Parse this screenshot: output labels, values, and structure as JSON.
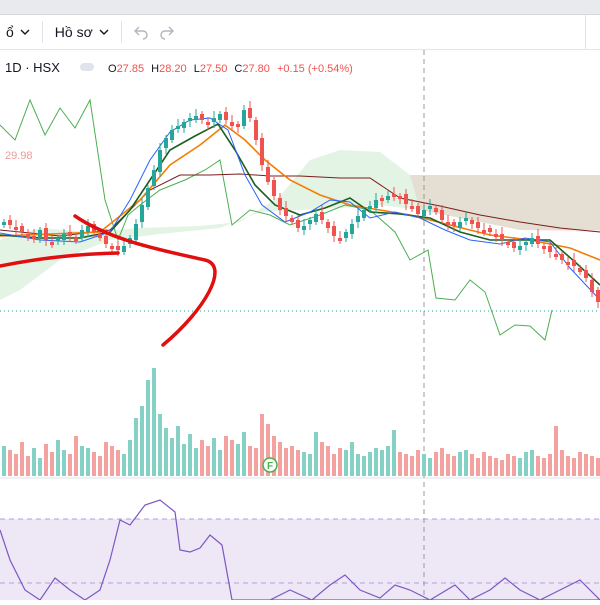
{
  "toolbar": {
    "left_cut_label": "ổ",
    "profile_label": "Hồ sơ",
    "undo_icon": "undo-icon",
    "redo_icon": "redo-icon"
  },
  "legend": {
    "interval_exchange": "1D · HSX",
    "o_label": "O",
    "o_value": "27.85",
    "h_label": "H",
    "h_value": "28.20",
    "l_label": "L",
    "l_value": "27.50",
    "c_label": "C",
    "c_value": "27.80",
    "change": "+0.15 (+0.54%)"
  },
  "price_label": "29.98",
  "volume_marker": "F",
  "colors": {
    "up": "#26a69a",
    "down": "#ef5350",
    "up_volume": "#86d1c6",
    "down_volume": "#f4a2a0",
    "ma_short": "#2962ff",
    "ma_mid": "#1b5e20",
    "ma_long": "#f57c00",
    "ichimoku_span": "#4caf50",
    "ichimoku_base": "#7b1c1c",
    "rsi_line": "#7e57c2",
    "rsi_band": "#ede7f6",
    "annotation": "#e01010"
  },
  "chart_data": {
    "type": "candlestick",
    "interval": "1D",
    "exchange": "HSX",
    "last_bar": {
      "open": 27.85,
      "high": 28.2,
      "low": 27.5,
      "close": 27.8,
      "change": 0.15,
      "change_pct": 0.54
    },
    "panes": [
      "price",
      "volume",
      "rsi"
    ],
    "overlays": [
      "moving averages",
      "ichimoku cloud"
    ],
    "grid": false
  }
}
